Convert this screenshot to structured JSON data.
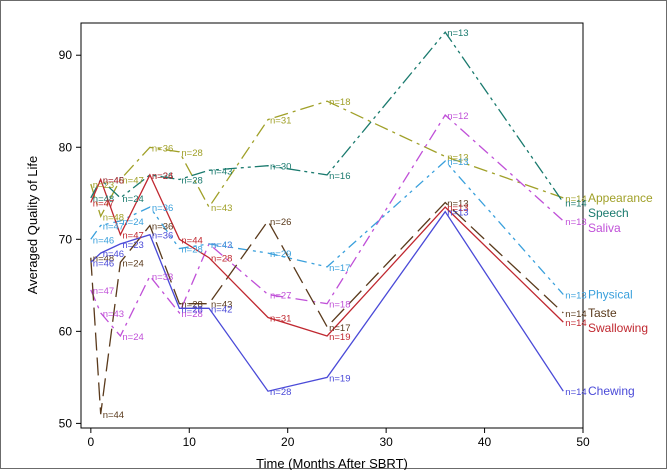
{
  "chart_data": {
    "type": "line",
    "title": "",
    "xlabel": "Time (Months After SBRT)",
    "ylabel": "Averaged Quality of Life",
    "xlim": [
      -1,
      50
    ],
    "ylim": [
      49.5,
      93.5
    ],
    "xticks": [
      0,
      10,
      20,
      30,
      40,
      50
    ],
    "yticks": [
      50,
      60,
      70,
      80,
      90
    ],
    "grid": false,
    "legend_placement": "right",
    "series": [
      {
        "name": "Appearance",
        "color": "#a0a028",
        "dash": "14,5,3,5",
        "x": [
          0,
          1,
          3,
          6,
          9,
          12,
          18,
          24,
          36,
          48
        ],
        "y": [
          76,
          72.5,
          76.5,
          80,
          79.5,
          73.5,
          83,
          85,
          79,
          74.5
        ],
        "labels": [
          "n=23",
          "n=48",
          "n=47",
          "n=36",
          "n=28",
          "n=43",
          "n=31",
          "n=18",
          "n=13",
          "n=14"
        ]
      },
      {
        "name": "Speech",
        "color": "#1a7a6e",
        "dash": "14,4,3,4,3,4",
        "x": [
          0,
          1,
          3,
          6,
          9,
          12,
          18,
          24,
          36,
          48
        ],
        "y": [
          74.5,
          76.5,
          74.5,
          77,
          76.5,
          77.5,
          78,
          77,
          92.5,
          74
        ],
        "labels": [
          "n=48",
          "n=45",
          "n=24",
          "n=36",
          "n=28",
          "n=43",
          "n=30",
          "n=16",
          "n=13",
          "n=14"
        ]
      },
      {
        "name": "Saliva",
        "color": "#c050d8",
        "dash": "12,5,3,5",
        "x": [
          0,
          1,
          3,
          6,
          9,
          12,
          18,
          24,
          36,
          48
        ],
        "y": [
          64.5,
          62,
          59.5,
          66,
          62,
          69.5,
          64,
          63,
          83.5,
          72
        ],
        "labels": [
          "n=47",
          "n=43",
          "n=24",
          "n=33",
          "n=28",
          "n=42",
          "n=27",
          "n=18",
          "n=12",
          "n=13"
        ]
      },
      {
        "name": "Physical",
        "color": "#3aa0dc",
        "dash": "10,5,3,4,3,5",
        "x": [
          0,
          1,
          3,
          6,
          9,
          12,
          18,
          24,
          36,
          48
        ],
        "y": [
          70,
          71.5,
          72,
          73.5,
          69,
          69.5,
          68.5,
          67,
          78.5,
          64
        ],
        "labels": [
          "n=46",
          "n=47",
          "n=24",
          "n=36",
          "n=28",
          "n=43",
          "n=29",
          "n=17",
          "n=13",
          "n=13"
        ]
      },
      {
        "name": "Taste",
        "color": "#5a3a1c",
        "dash": "18,7",
        "x": [
          0,
          1,
          3,
          6,
          9,
          12,
          18,
          24,
          36,
          48
        ],
        "y": [
          68,
          51,
          67.5,
          71.5,
          63,
          63,
          72,
          60.5,
          74,
          62
        ],
        "labels": [
          "n=48",
          "n=44",
          "n=24",
          "n=36",
          "n=28",
          "n=43",
          "n=26",
          "n=17",
          "n=13",
          "n=14"
        ]
      },
      {
        "name": "Swallowing",
        "color": "#c02830",
        "dash": "",
        "x": [
          0,
          1,
          3,
          6,
          9,
          12,
          18,
          24,
          36,
          48
        ],
        "y": [
          74,
          76.5,
          70.5,
          77,
          70,
          68,
          61.5,
          59.5,
          73.5,
          61
        ],
        "labels": [
          "n=47",
          "n=46",
          "n=47",
          "n=24",
          "n=44",
          "n=28",
          "n=31",
          "n=19",
          "n=13",
          "n=14"
        ]
      },
      {
        "name": "Chewing",
        "color": "#4a4ad8",
        "dash": "",
        "x": [
          0,
          1,
          3,
          6,
          9,
          12,
          18,
          24,
          36,
          48
        ],
        "y": [
          67.5,
          68.5,
          69.5,
          70.5,
          62.5,
          62.5,
          53.5,
          55,
          73,
          53.5
        ],
        "labels": [
          "n=46",
          "n=46",
          "n=23",
          "n=36",
          "n=28",
          "n=42",
          "n=28",
          "n=19",
          "n=13",
          "n=14"
        ]
      }
    ]
  }
}
